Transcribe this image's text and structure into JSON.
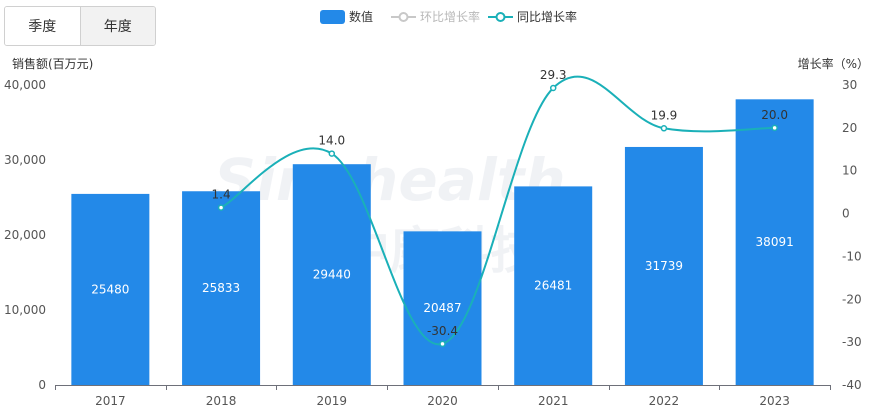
{
  "tabs": [
    {
      "label": "季度",
      "active": false
    },
    {
      "label": "年度",
      "active": true
    }
  ],
  "watermark": {
    "line1": "Sinohealth",
    "line2": "中康科技"
  },
  "legend": [
    {
      "name": "数值",
      "kind": "bar",
      "color": "#2389e8",
      "active": true
    },
    {
      "name": "环比增长率",
      "kind": "line",
      "color": "#c8c8c8",
      "active": false
    },
    {
      "name": "同比增长率",
      "kind": "line",
      "color": "#1ab0b8",
      "active": true
    }
  ],
  "chart_data": {
    "type": "bar",
    "categories": [
      "2017",
      "2018",
      "2019",
      "2020",
      "2021",
      "2022",
      "2023"
    ],
    "series": [
      {
        "name": "数值",
        "type": "bar",
        "axis": "left",
        "color": "#2389e8",
        "values": [
          25480,
          25833,
          29440,
          20487,
          26481,
          31739,
          38091
        ]
      },
      {
        "name": "同比增长率",
        "type": "line",
        "axis": "right",
        "color": "#1ab0b8",
        "smooth": true,
        "values": [
          null,
          1.4,
          14.0,
          -30.4,
          29.3,
          19.9,
          20.0
        ],
        "labels": [
          null,
          "1.4",
          "14.0",
          "-30.4",
          "29.3",
          "19.9",
          "20.0"
        ]
      }
    ],
    "ylabel": "销售额(百万元)",
    "y2label": "增长率（%）",
    "ylim": [
      0,
      40000
    ],
    "yticks": [
      "0",
      "10,000",
      "20,000",
      "30,000",
      "40,000"
    ],
    "y2lim": [
      -40,
      30
    ],
    "y2ticks": [
      "-40",
      "-30",
      "-20",
      "-10",
      "0",
      "10",
      "20",
      "30"
    ],
    "grid": false,
    "legend_position": "top-center"
  }
}
